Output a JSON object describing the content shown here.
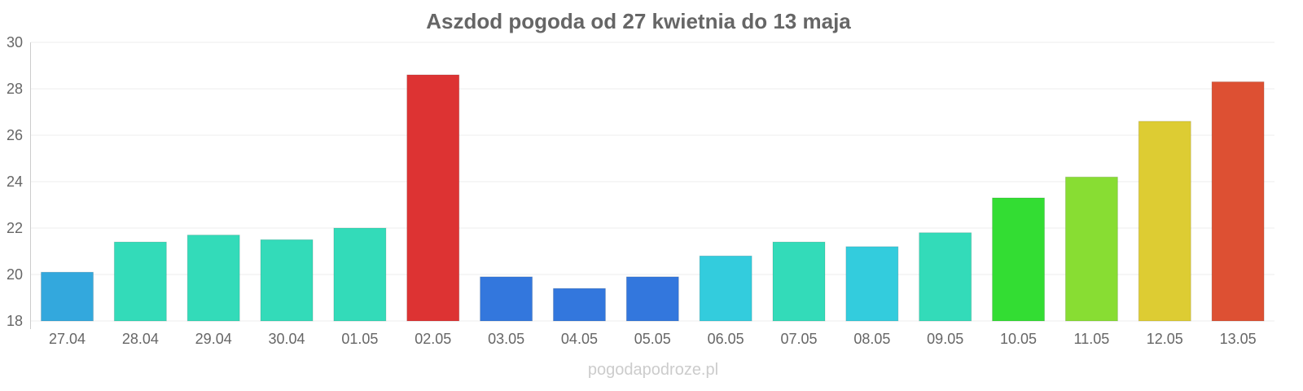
{
  "chart_data": {
    "type": "bar",
    "title": "Aszdod pogoda od 27 kwietnia do 13 maja",
    "xlabel": "",
    "ylabel": "",
    "ylim": [
      18,
      30
    ],
    "yticks": [
      "18",
      "20",
      "22",
      "24",
      "26",
      "28",
      "30"
    ],
    "grid": true,
    "categories": [
      "27.04",
      "28.04",
      "29.04",
      "30.04",
      "01.05",
      "02.05",
      "03.05",
      "04.05",
      "05.05",
      "06.05",
      "07.05",
      "08.05",
      "09.05",
      "10.05",
      "11.05",
      "12.05",
      "13.05"
    ],
    "values": [
      20.1,
      21.4,
      21.7,
      21.5,
      22.0,
      28.6,
      19.9,
      19.4,
      19.9,
      20.8,
      21.4,
      21.2,
      21.8,
      23.3,
      24.2,
      26.6,
      28.3
    ],
    "colors": [
      "#33a8dd",
      "#33dbb9",
      "#33dbb9",
      "#33dbb9",
      "#33dbb9",
      "#dd3333",
      "#3377dd",
      "#3377dd",
      "#3377dd",
      "#33ccdd",
      "#33dbb9",
      "#33ccdd",
      "#33dbb9",
      "#33dd33",
      "#88dd33",
      "#ddcc33",
      "#dd5033"
    ]
  },
  "watermark": "pogodapodroze.pl"
}
